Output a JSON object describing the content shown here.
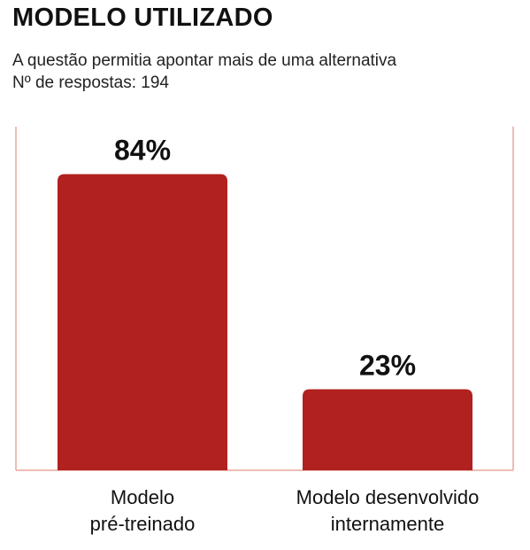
{
  "header": {
    "title": "MODELO UTILIZADO",
    "subtitle_line1": "A questão permitia apontar mais de uma alternativa",
    "subtitle_line2": "Nº de respostas: 194"
  },
  "colors": {
    "bar": "#b0211f",
    "frame": "#e8a79c",
    "text": "#111111"
  },
  "chart_data": {
    "type": "bar",
    "title": "MODELO UTILIZADO",
    "subtitle": "A questão permitia apontar mais de uma alternativa",
    "note": "Nº de respostas: 194",
    "categories": [
      [
        "Modelo",
        "pré-treinado"
      ],
      [
        "Modelo desenvolvido",
        "internamente"
      ]
    ],
    "values": [
      84,
      23
    ],
    "data_labels": [
      "84%",
      "23%"
    ],
    "unit": "%",
    "ylim": [
      0,
      100
    ],
    "xlabel": "",
    "ylabel": "",
    "grid": false,
    "legend": "none"
  }
}
